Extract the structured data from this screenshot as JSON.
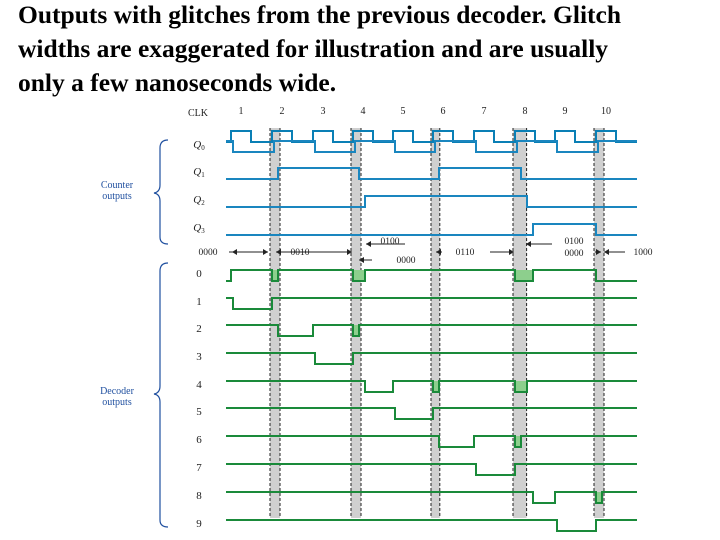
{
  "slide": {
    "title": "Outputs with glitches from the previous decoder. Glitch\nwidths are exaggerated for illustration and are usually\nonly a few nanoseconds wide."
  },
  "diagram": {
    "clk_label": "CLK",
    "clk_numbers": [
      "1",
      "2",
      "3",
      "4",
      "5",
      "6",
      "7",
      "8",
      "9",
      "10"
    ],
    "counter_group_label": "Counter\noutputs",
    "decoder_group_label": "Decoder\noutputs",
    "q_labels": [
      "Q0",
      "Q1",
      "Q2",
      "Q3"
    ],
    "decoder_labels": [
      "0",
      "1",
      "2",
      "3",
      "4",
      "5",
      "6",
      "7",
      "8",
      "9"
    ],
    "state_labels": {
      "s0000": "0000",
      "s0010": "0010",
      "s0100": "0100",
      "s0000b": "0000",
      "s0110": "0110",
      "s0100b": "0100",
      "s0000c": "0000",
      "s1000": "1000"
    },
    "colors": {
      "clock": "#0a7fb5",
      "counter": "#1a86bf",
      "decoder": "#1a8a3a",
      "glitch_fill": "#8dcf8d",
      "glitch_band": "#aaaaaa",
      "label_blue": "#1f4f9f"
    }
  }
}
